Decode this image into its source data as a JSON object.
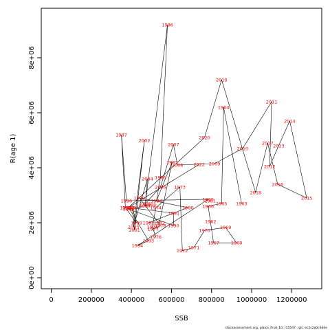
{
  "chart_data": {
    "type": "line",
    "xlabel": "SSB",
    "ylabel": "R(age 1)",
    "xlim": [
      -50000,
      1350000
    ],
    "ylim": [
      -400000,
      9800000
    ],
    "x_ticks": [
      0,
      200000,
      400000,
      600000,
      800000,
      1000000,
      1200000
    ],
    "x_tick_labels": [
      "0",
      "200000",
      "400000",
      "600000",
      "800000",
      "1000000",
      "1200000"
    ],
    "y_ticks": [
      0,
      2000000,
      4000000,
      6000000,
      8000000
    ],
    "y_tick_labels": [
      "0e+00",
      "2e+06",
      "4e+06",
      "6e+06",
      "8e+06"
    ],
    "grid": false,
    "points": [
      {
        "year": "1963",
        "x": 950000,
        "y": 2700000
      },
      {
        "year": "1964",
        "x": 860000,
        "y": 6200000
      },
      {
        "year": "1965",
        "x": 850000,
        "y": 2700000
      },
      {
        "year": "1966",
        "x": 783000,
        "y": 2600000
      },
      {
        "year": "1967",
        "x": 810000,
        "y": 1270000
      },
      {
        "year": "1968",
        "x": 925000,
        "y": 1270000
      },
      {
        "year": "1969",
        "x": 870000,
        "y": 1830000
      },
      {
        "year": "1970",
        "x": 765000,
        "y": 1720000
      },
      {
        "year": "1971",
        "x": 712000,
        "y": 1100000
      },
      {
        "year": "1972",
        "x": 654000,
        "y": 980000
      },
      {
        "year": "1973",
        "x": 642000,
        "y": 3300000
      },
      {
        "year": "1974",
        "x": 522000,
        "y": 2550000
      },
      {
        "year": "1975",
        "x": 505000,
        "y": 1850000
      },
      {
        "year": "1976",
        "x": 522000,
        "y": 1480000
      },
      {
        "year": "1977",
        "x": 508000,
        "y": 1770000
      },
      {
        "year": "1978",
        "x": 545000,
        "y": 1900000
      },
      {
        "year": "1979",
        "x": 440000,
        "y": 2900000
      },
      {
        "year": "1980",
        "x": 682000,
        "y": 2550000
      },
      {
        "year": "1981",
        "x": 485000,
        "y": 2000000
      },
      {
        "year": "1982",
        "x": 540000,
        "y": 2000000
      },
      {
        "year": "1983",
        "x": 603000,
        "y": 4200000
      },
      {
        "year": "1984",
        "x": 525000,
        "y": 2800000
      },
      {
        "year": "1985",
        "x": 545000,
        "y": 3650000
      },
      {
        "year": "1986",
        "x": 580000,
        "y": 9200000
      },
      {
        "year": "1987",
        "x": 468000,
        "y": 2610000
      },
      {
        "year": "1988",
        "x": 495000,
        "y": 2650000
      },
      {
        "year": "1989",
        "x": 385000,
        "y": 2500000
      },
      {
        "year": "1990",
        "x": 610000,
        "y": 1900000
      },
      {
        "year": "1991",
        "x": 612000,
        "y": 2350000
      },
      {
        "year": "1992",
        "x": 387000,
        "y": 2550000
      },
      {
        "year": "1993",
        "x": 485000,
        "y": 1350000
      },
      {
        "year": "1994",
        "x": 430000,
        "y": 1170000
      },
      {
        "year": "1995",
        "x": 783000,
        "y": 2850000
      },
      {
        "year": "1996",
        "x": 375000,
        "y": 2800000
      },
      {
        "year": "1997",
        "x": 350000,
        "y": 5200000
      },
      {
        "year": "1998",
        "x": 370000,
        "y": 2550000
      },
      {
        "year": "1999",
        "x": 425000,
        "y": 2000000
      },
      {
        "year": "2000",
        "x": 405000,
        "y": 2550000
      },
      {
        "year": "2001",
        "x": 415000,
        "y": 1730000
      },
      {
        "year": "2002",
        "x": 465000,
        "y": 5000000
      },
      {
        "year": "2003",
        "x": 410000,
        "y": 1850000
      },
      {
        "year": "2004",
        "x": 480000,
        "y": 3600000
      },
      {
        "year": "2005",
        "x": 470000,
        "y": 2700000
      },
      {
        "year": "2006",
        "x": 545000,
        "y": 3300000
      },
      {
        "year": "2007",
        "x": 610000,
        "y": 4850000
      },
      {
        "year": "2008",
        "x": 630000,
        "y": 4100000
      },
      {
        "year": "2009",
        "x": 815000,
        "y": 4150000
      },
      {
        "year": "2010",
        "x": 955000,
        "y": 4700000
      },
      {
        "year": "2011",
        "x": 1100000,
        "y": 6400000
      },
      {
        "year": "2012",
        "x": 1090000,
        "y": 4050000
      },
      {
        "year": "2013",
        "x": 1135000,
        "y": 4800000
      },
      {
        "year": "2014",
        "x": 1190000,
        "y": 5700000
      },
      {
        "year": "2015",
        "x": 1275000,
        "y": 2900000
      },
      {
        "year": "2016",
        "x": 1130000,
        "y": 3400000
      },
      {
        "year": "2017",
        "x": 1080000,
        "y": 4900000
      },
      {
        "year": "2018",
        "x": 1020000,
        "y": 3100000
      },
      {
        "year": "2019",
        "x": 850000,
        "y": 7200000
      },
      {
        "year": "2020",
        "x": 765000,
        "y": 5100000
      },
      {
        "year": "2021",
        "x": 385000,
        "y": 2550000
      },
      {
        "year": "2022",
        "x": 738000,
        "y": 4120000
      }
    ],
    "extra_labels": [
      {
        "text": "1961",
        "x": 793000,
        "y": 2800000
      },
      {
        "text": "1962",
        "x": 795000,
        "y": 2050000
      }
    ]
  },
  "footer_text": "stockassessment.org, plaice_final_10, r15547 , git: ec2c2a0c6dde"
}
